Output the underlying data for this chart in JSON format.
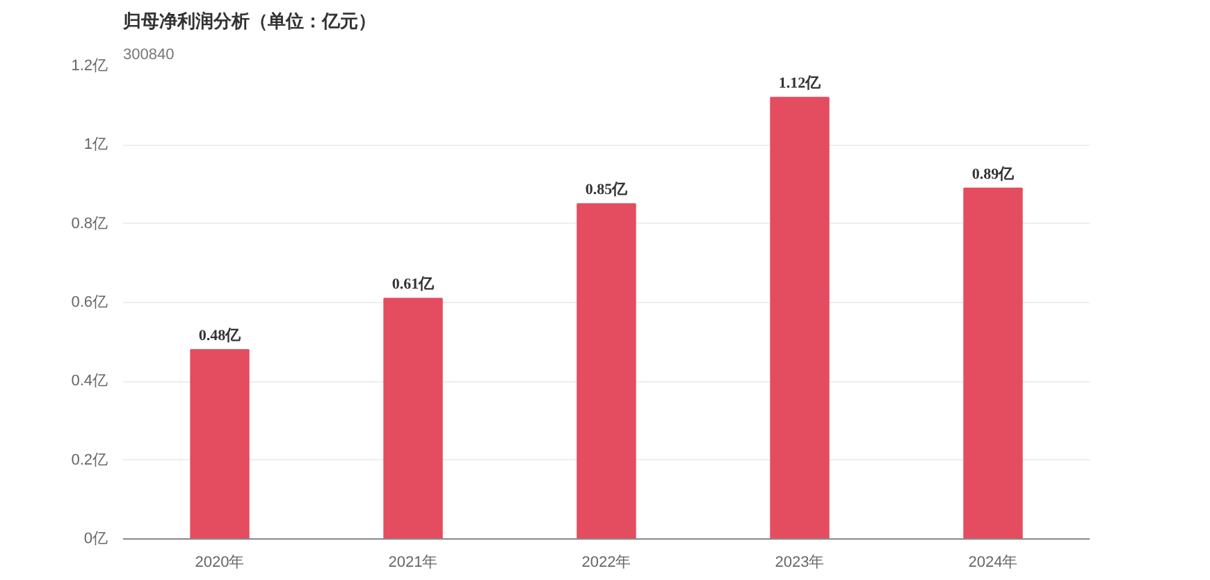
{
  "chart_data": {
    "type": "bar",
    "title": "归母净利润分析（单位：亿元）",
    "subtitle": "300840",
    "categories": [
      "2020年",
      "2021年",
      "2022年",
      "2023年",
      "2024年"
    ],
    "values": [
      0.48,
      0.61,
      0.85,
      1.12,
      0.89
    ],
    "value_labels": [
      "0.48亿",
      "0.61亿",
      "0.85亿",
      "1.12亿",
      "0.89亿"
    ],
    "color": "#e44d5f",
    "ylim": [
      0,
      1.2
    ],
    "yticks": [
      {
        "value": 0,
        "label": "0亿"
      },
      {
        "value": 0.2,
        "label": "0.2亿"
      },
      {
        "value": 0.4,
        "label": "0.4亿"
      },
      {
        "value": 0.6,
        "label": "0.6亿"
      },
      {
        "value": 0.8,
        "label": "0.8亿"
      },
      {
        "value": 1,
        "label": "1亿"
      },
      {
        "value": 1.2,
        "label": "1.2亿"
      }
    ],
    "grid": "y"
  }
}
